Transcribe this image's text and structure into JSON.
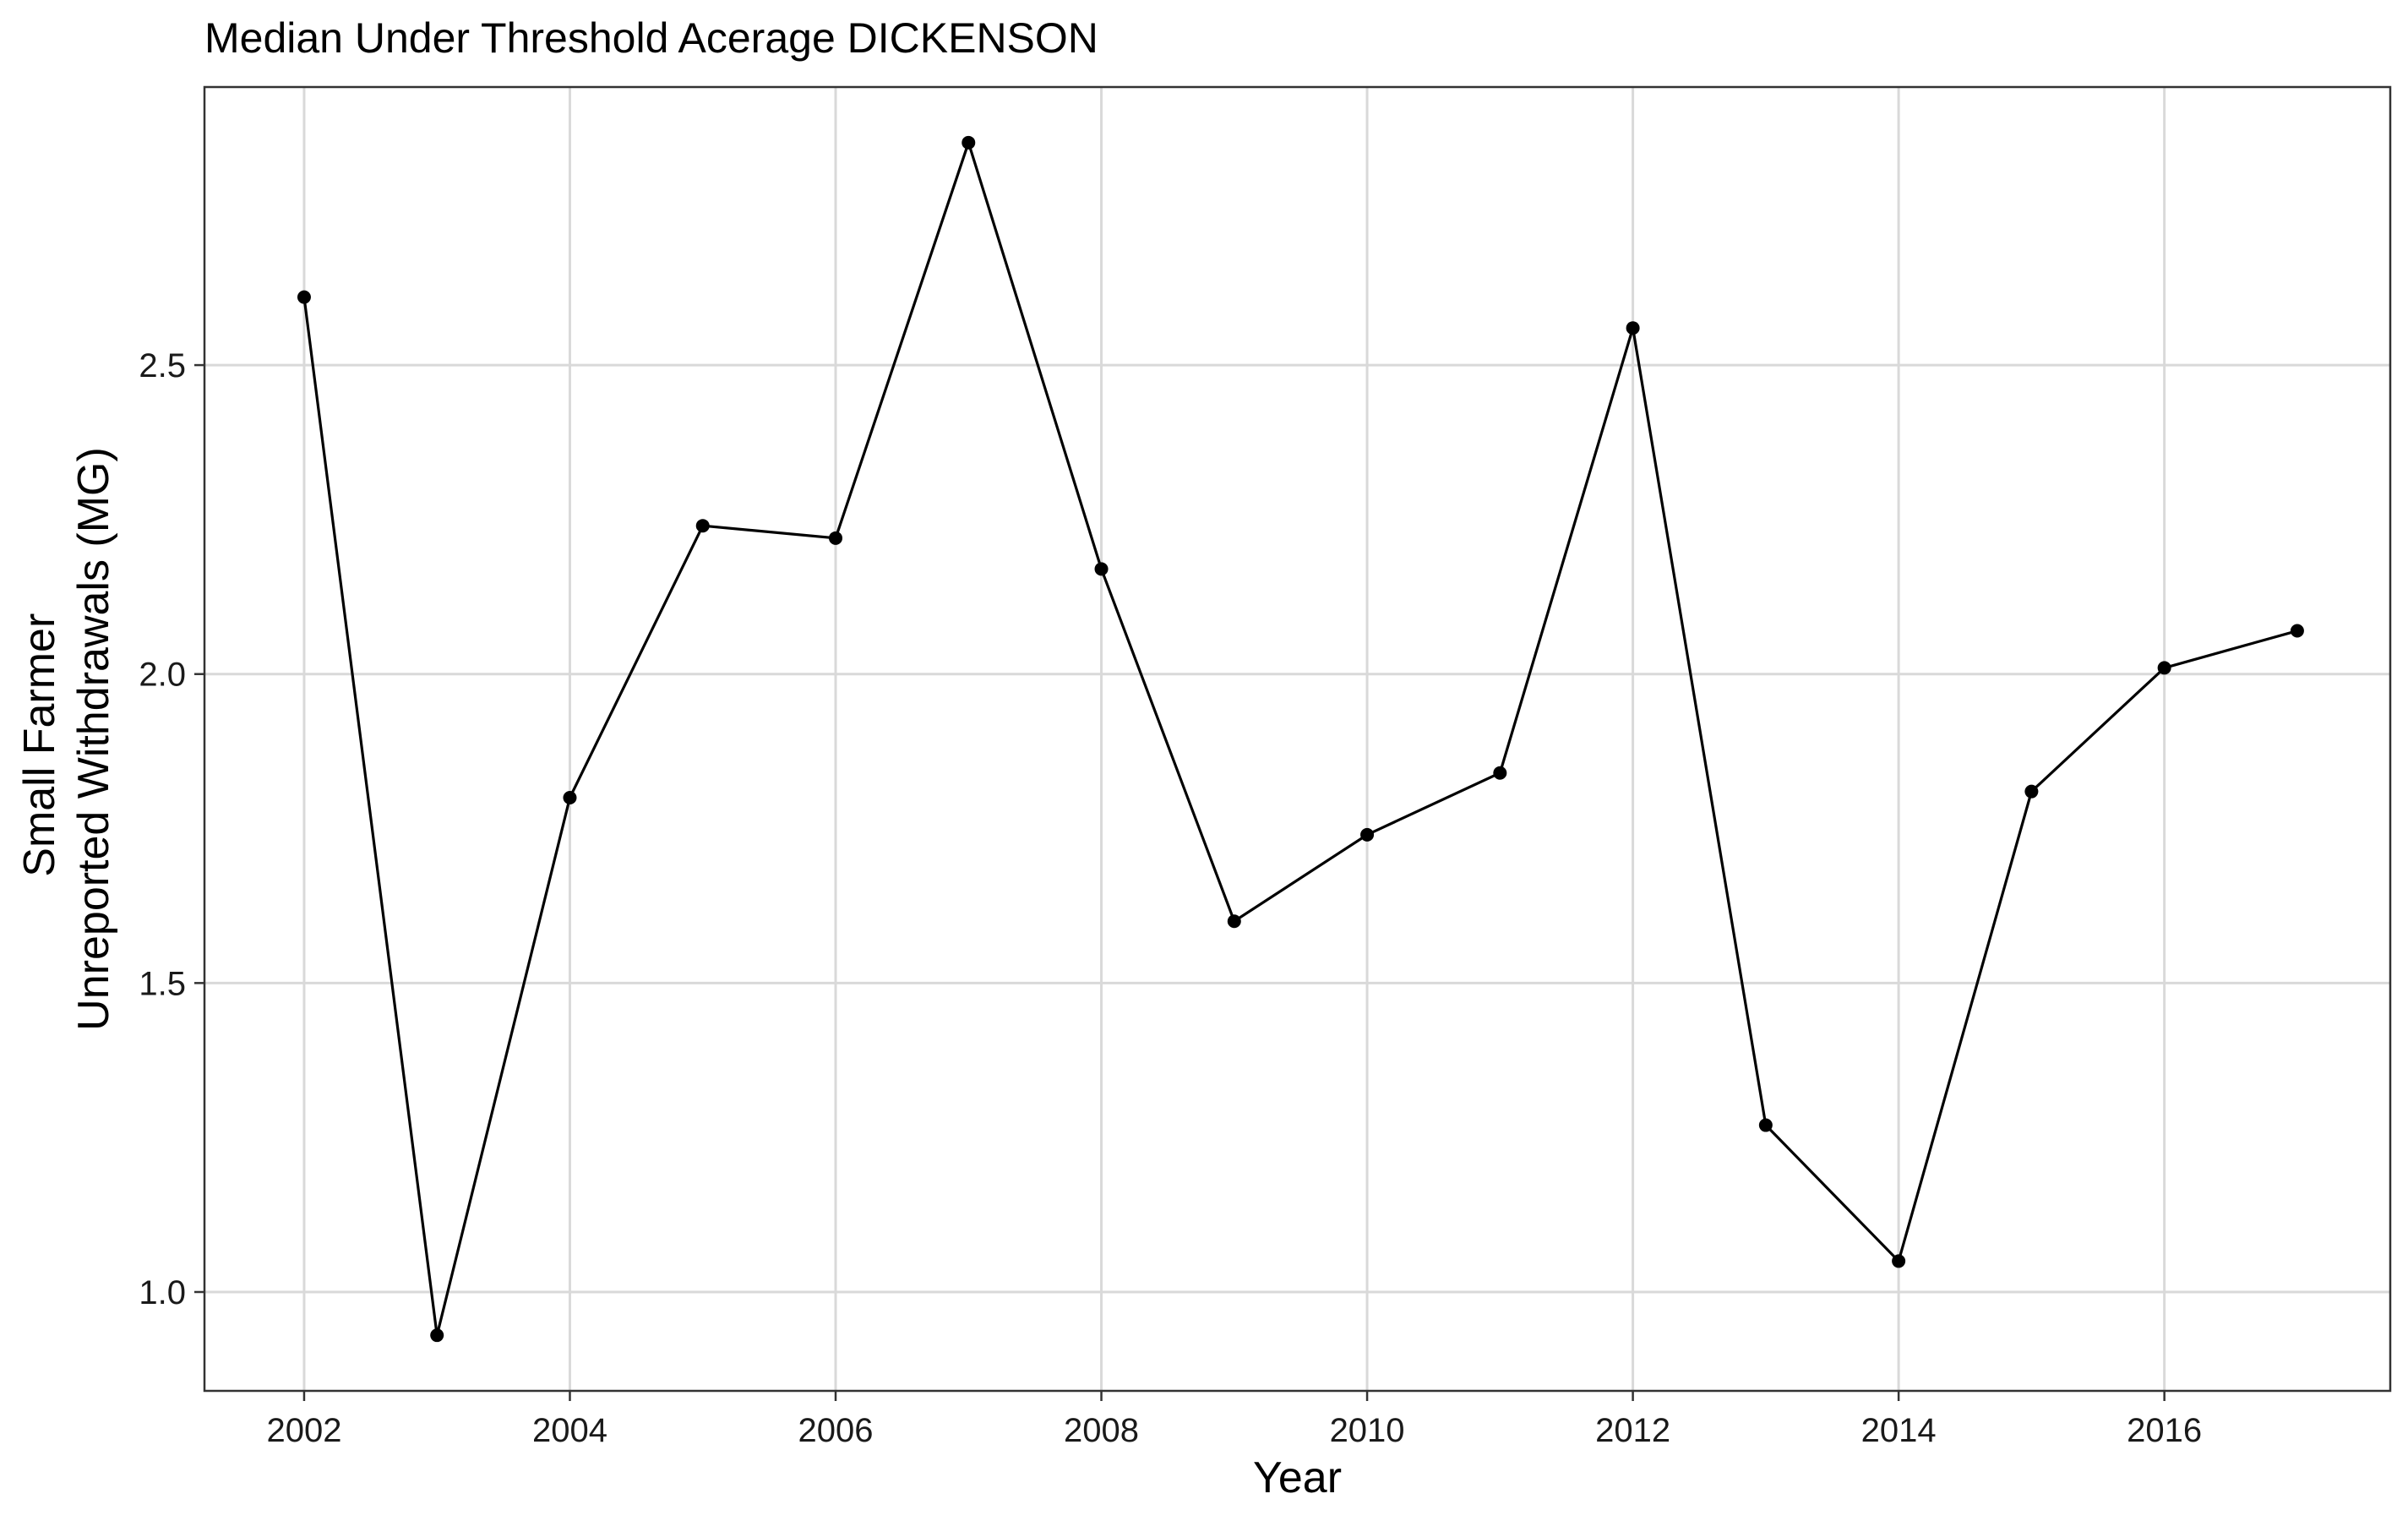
{
  "chart_data": {
    "type": "line",
    "title": "Median Under Threshold Acerage DICKENSON",
    "xlabel": "Year",
    "ylabel_lines": [
      "Small Farmer",
      "Unreported Withdrawals (MG)"
    ],
    "x": [
      2002.0,
      2003.0,
      2004.0,
      2005.0,
      2006.0,
      2007.0,
      2008.0,
      2009.0,
      2010.0,
      2011.0,
      2012.0,
      2013.0,
      2014.0,
      2015.0,
      2016.0,
      2017.0
    ],
    "series": [
      {
        "values": [
          2.61,
          0.93,
          1.8,
          2.24,
          2.22,
          2.86,
          2.17,
          1.6,
          1.74,
          1.84,
          2.56,
          1.27,
          1.05,
          1.81,
          2.01,
          2.07
        ]
      }
    ],
    "xticks": [
      2002,
      2004,
      2006,
      2008,
      2010,
      2012,
      2014,
      2016
    ],
    "xtick_labels": [
      "2002",
      "2004",
      "2006",
      "2008",
      "2010",
      "2012",
      "2014",
      "2016"
    ],
    "yticks": [
      1.0,
      1.5,
      2.0,
      2.5
    ],
    "ytick_labels": [
      "1.0",
      "1.5",
      "2.0",
      "2.5"
    ],
    "xlim": [
      2001.25,
      2017.7
    ],
    "ylim": [
      0.84,
      2.95
    ],
    "grid": true,
    "legend": "none",
    "colors": {
      "line": "#000000",
      "grid": "#d9d9d9",
      "border": "#333333",
      "background": "#ffffff"
    }
  }
}
